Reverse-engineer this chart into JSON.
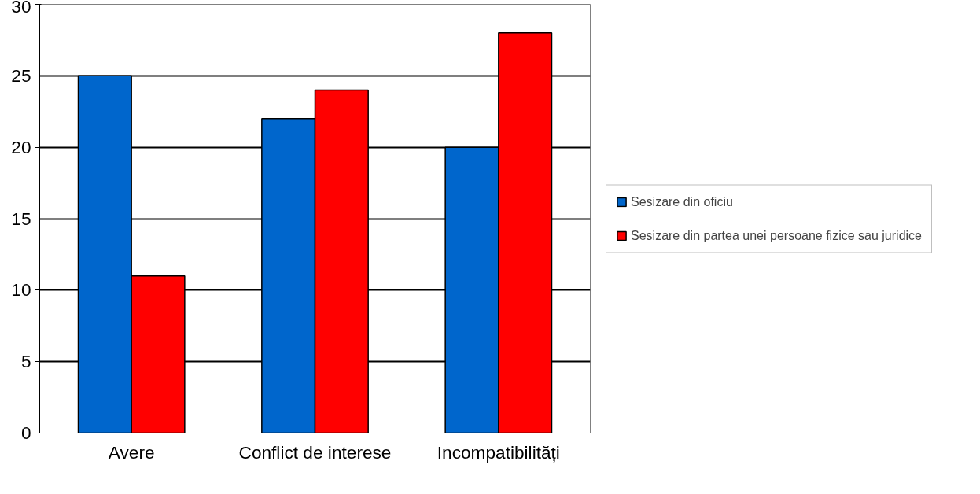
{
  "chart_data": {
    "type": "bar",
    "categories": [
      "Avere",
      "Conflict de interese",
      "Incompatibilități"
    ],
    "series": [
      {
        "name": "Sesizare din oficiu",
        "color": "#0066cc",
        "values": [
          25,
          22,
          20
        ]
      },
      {
        "name": "Sesizare din partea unei persoane fizice sau juridice",
        "color": "#ff0000",
        "values": [
          11,
          24,
          28
        ]
      }
    ],
    "ylim": [
      0,
      30
    ],
    "yticks": [
      0,
      5,
      10,
      15,
      20,
      25,
      30
    ],
    "grid": "y",
    "legend": "right"
  }
}
